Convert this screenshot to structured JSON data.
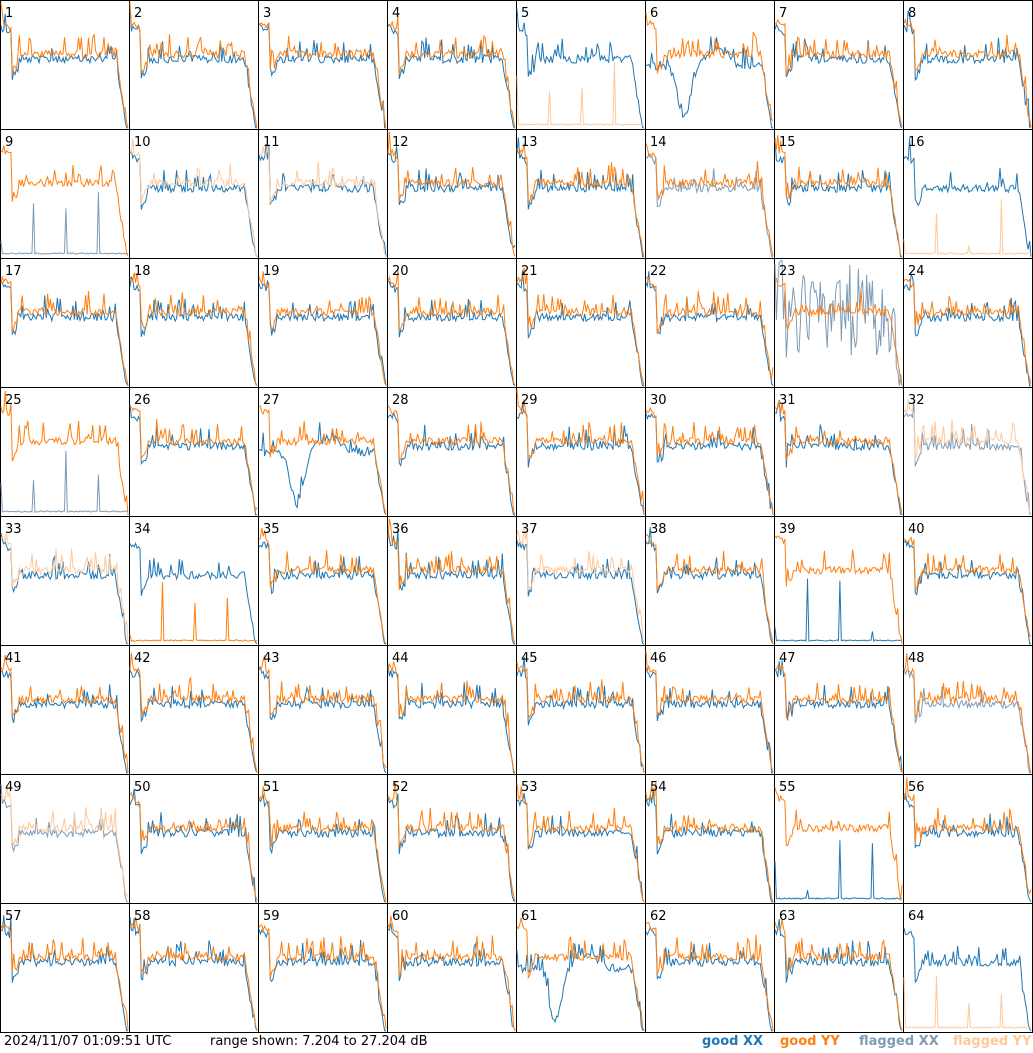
{
  "footer": {
    "timestamp": "2024/11/07 01:09:51 UTC",
    "range": "range shown: 7.204 to 27.204 dB"
  },
  "legend": [
    {
      "label": "good XX",
      "color": "#1f77b4"
    },
    {
      "label": "good YY",
      "color": "#ff7f0e"
    },
    {
      "label": "flagged XX",
      "color": "#7f9bb5"
    },
    {
      "label": "flagged YY",
      "color": "#ffc89a"
    }
  ],
  "chart_data": {
    "type": "line",
    "units": "dB",
    "ylim": [
      7.204,
      27.204
    ],
    "layout": "8x8 grid of per-tile spectra",
    "panels": [
      {
        "label": "1",
        "xx": "good",
        "yy": "good",
        "note": "YY high at low channels"
      },
      {
        "label": "2",
        "xx": "good",
        "yy": "good"
      },
      {
        "label": "3",
        "xx": "good",
        "yy": "good"
      },
      {
        "label": "4",
        "xx": "good",
        "yy": "good"
      },
      {
        "label": "5",
        "xx": "good",
        "yy": "flagged",
        "note": "YY near floor"
      },
      {
        "label": "6",
        "xx": "good",
        "yy": "good",
        "note": "XX deep dip"
      },
      {
        "label": "7",
        "xx": "good",
        "yy": "good"
      },
      {
        "label": "8",
        "xx": "good",
        "yy": "good"
      },
      {
        "label": "9",
        "xx": "flagged",
        "yy": "good",
        "note": "XX near floor"
      },
      {
        "label": "10",
        "xx": "good",
        "yy": "flagged"
      },
      {
        "label": "11",
        "xx": "good",
        "yy": "flagged"
      },
      {
        "label": "12",
        "xx": "good",
        "yy": "good"
      },
      {
        "label": "13",
        "xx": "good",
        "yy": "good"
      },
      {
        "label": "14",
        "xx": "flagged",
        "yy": "good"
      },
      {
        "label": "15",
        "xx": "good",
        "yy": "good"
      },
      {
        "label": "16",
        "xx": "good",
        "yy": "flagged",
        "note": "YY near floor"
      },
      {
        "label": "17",
        "xx": "good",
        "yy": "good"
      },
      {
        "label": "18",
        "xx": "good",
        "yy": "good"
      },
      {
        "label": "19",
        "xx": "good",
        "yy": "good"
      },
      {
        "label": "20",
        "xx": "good",
        "yy": "good"
      },
      {
        "label": "21",
        "xx": "good",
        "yy": "good"
      },
      {
        "label": "22",
        "xx": "good",
        "yy": "good"
      },
      {
        "label": "23",
        "xx": "flagged",
        "yy": "good",
        "note": "XX noisy"
      },
      {
        "label": "24",
        "xx": "good",
        "yy": "good"
      },
      {
        "label": "25",
        "xx": "flagged",
        "yy": "good",
        "note": "XX near floor"
      },
      {
        "label": "26",
        "xx": "good",
        "yy": "good"
      },
      {
        "label": "27",
        "xx": "good",
        "yy": "good",
        "note": "XX deep dip"
      },
      {
        "label": "28",
        "xx": "good",
        "yy": "good"
      },
      {
        "label": "29",
        "xx": "good",
        "yy": "good"
      },
      {
        "label": "30",
        "xx": "good",
        "yy": "good"
      },
      {
        "label": "31",
        "xx": "good",
        "yy": "good"
      },
      {
        "label": "32",
        "xx": "flagged",
        "yy": "flagged"
      },
      {
        "label": "33",
        "xx": "good",
        "yy": "flagged"
      },
      {
        "label": "34",
        "xx": "good",
        "yy": "good",
        "note": "YY near floor"
      },
      {
        "label": "35",
        "xx": "good",
        "yy": "good"
      },
      {
        "label": "36",
        "xx": "good",
        "yy": "good"
      },
      {
        "label": "37",
        "xx": "good",
        "yy": "flagged"
      },
      {
        "label": "38",
        "xx": "good",
        "yy": "good"
      },
      {
        "label": "39",
        "xx": "good",
        "yy": "good",
        "note": "XX near floor"
      },
      {
        "label": "40",
        "xx": "good",
        "yy": "good"
      },
      {
        "label": "41",
        "xx": "good",
        "yy": "good"
      },
      {
        "label": "42",
        "xx": "good",
        "yy": "good"
      },
      {
        "label": "43",
        "xx": "good",
        "yy": "good"
      },
      {
        "label": "44",
        "xx": "good",
        "yy": "good"
      },
      {
        "label": "45",
        "xx": "good",
        "yy": "good"
      },
      {
        "label": "46",
        "xx": "good",
        "yy": "good"
      },
      {
        "label": "47",
        "xx": "good",
        "yy": "good"
      },
      {
        "label": "48",
        "xx": "flagged",
        "yy": "good"
      },
      {
        "label": "49",
        "xx": "flagged",
        "yy": "flagged"
      },
      {
        "label": "50",
        "xx": "good",
        "yy": "good"
      },
      {
        "label": "51",
        "xx": "good",
        "yy": "good"
      },
      {
        "label": "52",
        "xx": "good",
        "yy": "good"
      },
      {
        "label": "53",
        "xx": "good",
        "yy": "good"
      },
      {
        "label": "54",
        "xx": "good",
        "yy": "good"
      },
      {
        "label": "55",
        "xx": "good",
        "yy": "good",
        "note": "XX near floor"
      },
      {
        "label": "56",
        "xx": "good",
        "yy": "good"
      },
      {
        "label": "57",
        "xx": "good",
        "yy": "good"
      },
      {
        "label": "58",
        "xx": "good",
        "yy": "good"
      },
      {
        "label": "59",
        "xx": "good",
        "yy": "good"
      },
      {
        "label": "60",
        "xx": "good",
        "yy": "good"
      },
      {
        "label": "61",
        "xx": "good",
        "yy": "good",
        "note": "XX deep dip"
      },
      {
        "label": "62",
        "xx": "good",
        "yy": "good"
      },
      {
        "label": "63",
        "xx": "good",
        "yy": "good"
      },
      {
        "label": "64",
        "xx": "good",
        "yy": "flagged",
        "note": "YY near floor"
      }
    ]
  }
}
